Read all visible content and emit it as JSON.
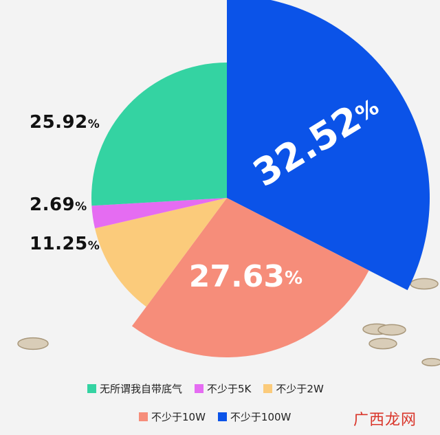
{
  "chart_data": {
    "type": "pie",
    "categories": [
      "无所谓我自带底气",
      "不少于5K",
      "不少于2W",
      "不少于10W",
      "不少于100W"
    ],
    "values": [
      25.92,
      2.69,
      11.25,
      27.63,
      32.52
    ],
    "value_labels": [
      "25.92",
      "2.69",
      "11.25",
      "27.63",
      "32.52"
    ],
    "percent_sign": "%",
    "colors": [
      "#34d3a2",
      "#e56cf2",
      "#fbcb7b",
      "#f68d7a",
      "#0b53e8"
    ],
    "title": "",
    "legend_position": "bottom"
  },
  "watermark": "广西龙网"
}
